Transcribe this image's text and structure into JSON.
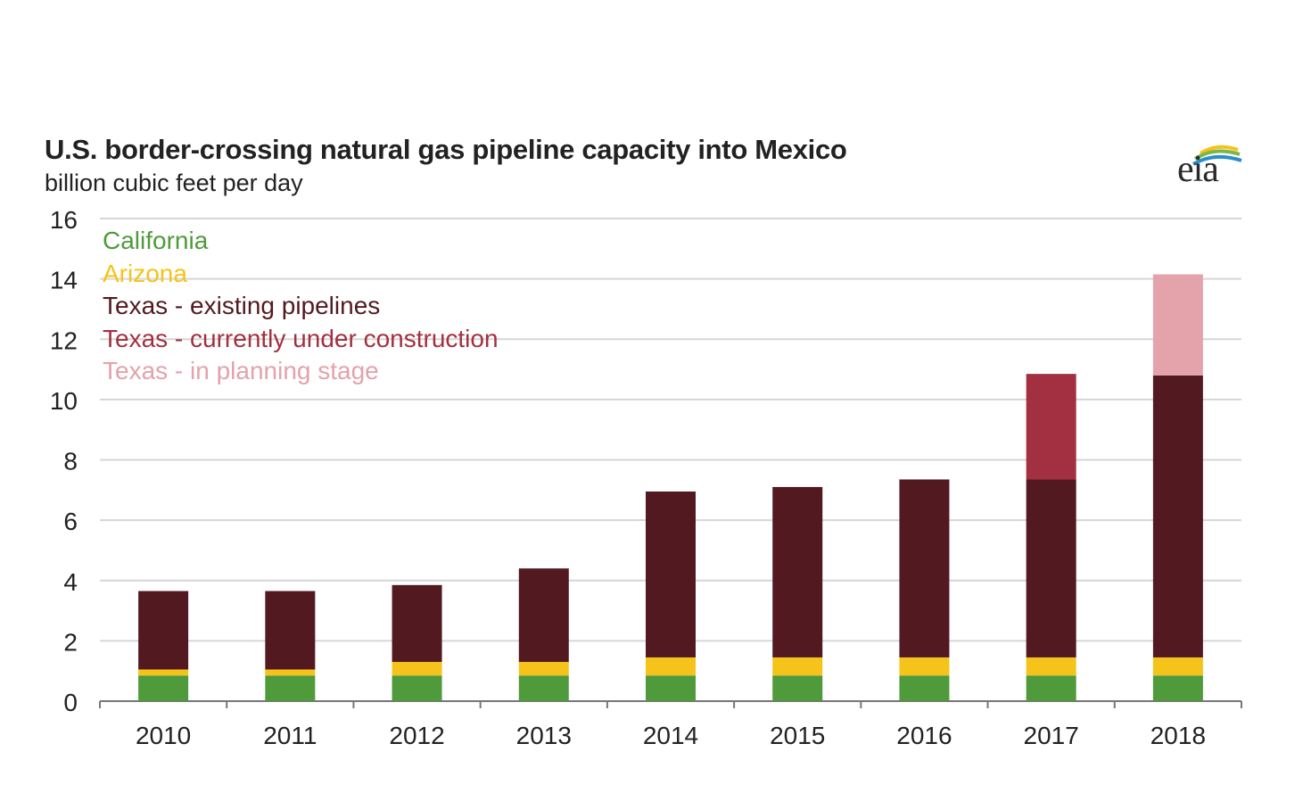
{
  "chart_data": {
    "type": "bar",
    "stacked": true,
    "title": "U.S. border-crossing natural gas pipeline capacity into Mexico",
    "subtitle": "billion cubic feet per day",
    "categories": [
      "2010",
      "2011",
      "2012",
      "2013",
      "2014",
      "2015",
      "2016",
      "2017",
      "2018"
    ],
    "series": [
      {
        "name": "California",
        "color": "#4f9a3a",
        "values": [
          0.85,
          0.85,
          0.85,
          0.85,
          0.85,
          0.85,
          0.85,
          0.85,
          0.85
        ]
      },
      {
        "name": "Arizona",
        "color": "#f5c31a",
        "values": [
          0.2,
          0.2,
          0.45,
          0.45,
          0.6,
          0.6,
          0.6,
          0.6,
          0.6
        ]
      },
      {
        "name": "Texas - existing pipelines",
        "color": "#521a20",
        "values": [
          2.6,
          2.6,
          2.55,
          3.1,
          5.5,
          5.65,
          5.9,
          5.9,
          9.35
        ]
      },
      {
        "name": "Texas - currently under construction",
        "color": "#a33040",
        "values": [
          0,
          0,
          0,
          0,
          0,
          0,
          0,
          3.5,
          0
        ]
      },
      {
        "name": "Texas - in planning stage",
        "color": "#e4a2ab",
        "values": [
          0,
          0,
          0,
          0,
          0,
          0,
          0,
          0,
          3.35
        ]
      }
    ],
    "ylim": [
      0,
      16
    ],
    "yticks": [
      "0",
      "2",
      "4",
      "6",
      "8",
      "10",
      "12",
      "14",
      "16"
    ],
    "grid": true,
    "legend_position": "top-left"
  },
  "logo": {
    "text": "eia"
  }
}
